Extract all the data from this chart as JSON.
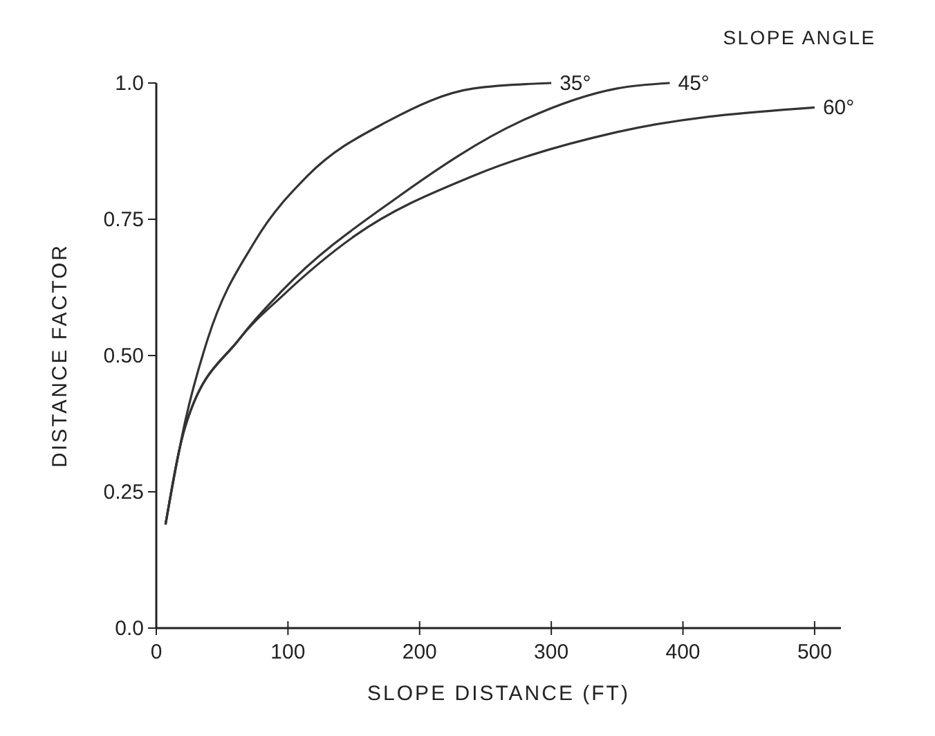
{
  "chart_data": {
    "type": "line",
    "xlabel": "SLOPE DISTANCE (FT)",
    "ylabel": "DISTANCE FACTOR",
    "legend_title": "SLOPE ANGLE",
    "xlim": [
      0,
      520
    ],
    "ylim": [
      0,
      1.0
    ],
    "xticks": [
      0,
      100,
      200,
      300,
      400,
      500
    ],
    "yticks": [
      {
        "value": 0,
        "label": "0.0"
      },
      {
        "value": 0.25,
        "label": "0.25"
      },
      {
        "value": 0.5,
        "label": "0.50"
      },
      {
        "value": 0.75,
        "label": "0.75"
      },
      {
        "value": 1.0,
        "label": "1.0"
      }
    ],
    "grid": false,
    "marker": "none",
    "line_style": "solid",
    "series": [
      {
        "name": "35°",
        "color": "#333333",
        "x": [
          7,
          22,
          39,
          75,
          115,
          176,
          241,
          300
        ],
        "values": [
          0.19,
          0.38,
          0.53,
          0.71,
          0.83,
          0.93,
          0.99,
          1.0
        ]
      },
      {
        "name": "45°",
        "color": "#333333",
        "x": [
          7,
          22,
          63,
          96,
          183,
          277,
          350,
          390
        ],
        "values": [
          0.19,
          0.37,
          0.53,
          0.62,
          0.79,
          0.93,
          0.99,
          1.0
        ]
      },
      {
        "name": "60°",
        "color": "#333333",
        "x": [
          7,
          22,
          63,
          96,
          151,
          241,
          350,
          500
        ],
        "values": [
          0.19,
          0.37,
          0.53,
          0.61,
          0.72,
          0.83,
          0.91,
          0.955
        ]
      }
    ]
  }
}
